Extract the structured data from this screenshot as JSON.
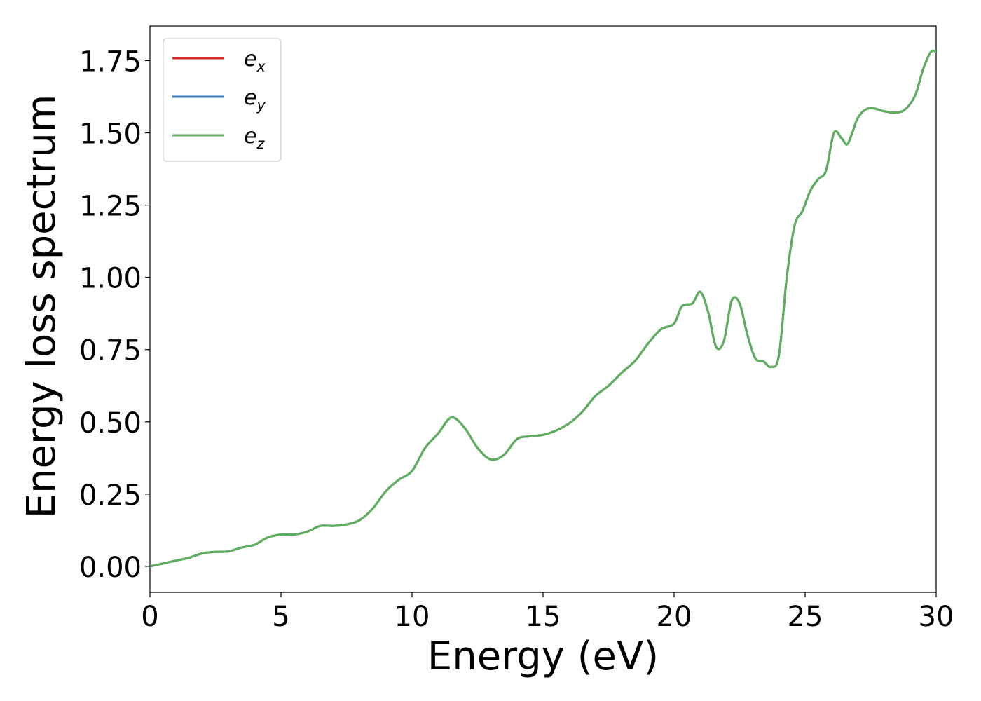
{
  "chart_data": {
    "type": "line",
    "title": "",
    "xlabel": "Energy (eV)",
    "ylabel": "Energy loss spectrum",
    "xlim": [
      0,
      30
    ],
    "ylim": [
      -0.09,
      1.87
    ],
    "xticks": [
      0,
      5,
      10,
      15,
      20,
      25,
      30
    ],
    "xtick_labels": [
      "0",
      "5",
      "10",
      "15",
      "20",
      "25",
      "30"
    ],
    "yticks": [
      0.0,
      0.25,
      0.5,
      0.75,
      1.0,
      1.25,
      1.5,
      1.75
    ],
    "ytick_labels": [
      "0.00",
      "0.25",
      "0.50",
      "0.75",
      "1.00",
      "1.25",
      "1.50",
      "1.75"
    ],
    "grid": false,
    "legend_position": "top-left",
    "x": [
      0,
      0.5,
      1.0,
      1.5,
      2.0,
      2.5,
      3.0,
      3.5,
      4.0,
      4.5,
      5.0,
      5.5,
      6.0,
      6.5,
      7.0,
      7.5,
      8.0,
      8.5,
      9.0,
      9.5,
      10.0,
      10.5,
      11.0,
      11.5,
      12.0,
      12.5,
      13.0,
      13.5,
      14.0,
      14.5,
      15.0,
      15.5,
      16.0,
      16.5,
      17.0,
      17.5,
      18.0,
      18.5,
      19.0,
      19.5,
      20.0,
      20.3,
      20.7,
      21.0,
      21.3,
      21.6,
      21.9,
      22.2,
      22.5,
      22.8,
      23.1,
      23.4,
      23.7,
      24.0,
      24.3,
      24.6,
      24.9,
      25.2,
      25.5,
      25.8,
      26.1,
      26.4,
      26.6,
      26.8,
      27.0,
      27.3,
      27.6,
      28.0,
      28.4,
      28.8,
      29.2,
      29.5,
      29.8,
      30.0
    ],
    "series": [
      {
        "name": "e_x",
        "label_base": "e",
        "label_sub": "x",
        "color": "#d62728",
        "values": [
          0.0,
          0.01,
          0.02,
          0.03,
          0.045,
          0.05,
          0.052,
          0.065,
          0.075,
          0.1,
          0.11,
          0.11,
          0.12,
          0.14,
          0.14,
          0.145,
          0.16,
          0.2,
          0.26,
          0.3,
          0.33,
          0.41,
          0.46,
          0.515,
          0.48,
          0.41,
          0.37,
          0.385,
          0.44,
          0.45,
          0.455,
          0.47,
          0.495,
          0.535,
          0.59,
          0.625,
          0.67,
          0.71,
          0.77,
          0.82,
          0.84,
          0.9,
          0.91,
          0.95,
          0.88,
          0.76,
          0.78,
          0.92,
          0.91,
          0.8,
          0.72,
          0.71,
          0.69,
          0.73,
          1.0,
          1.18,
          1.23,
          1.3,
          1.34,
          1.37,
          1.5,
          1.48,
          1.46,
          1.5,
          1.55,
          1.58,
          1.585,
          1.575,
          1.57,
          1.58,
          1.63,
          1.72,
          1.78,
          1.78
        ]
      },
      {
        "name": "e_y",
        "label_base": "e",
        "label_sub": "y",
        "color": "#3d7ab8",
        "values": [
          0.0,
          0.01,
          0.02,
          0.03,
          0.045,
          0.05,
          0.052,
          0.065,
          0.075,
          0.1,
          0.11,
          0.11,
          0.12,
          0.14,
          0.14,
          0.145,
          0.16,
          0.2,
          0.26,
          0.3,
          0.33,
          0.41,
          0.46,
          0.515,
          0.48,
          0.41,
          0.37,
          0.385,
          0.44,
          0.45,
          0.455,
          0.47,
          0.495,
          0.535,
          0.59,
          0.625,
          0.67,
          0.71,
          0.77,
          0.82,
          0.84,
          0.9,
          0.91,
          0.95,
          0.88,
          0.76,
          0.78,
          0.92,
          0.91,
          0.8,
          0.72,
          0.71,
          0.69,
          0.73,
          1.0,
          1.18,
          1.23,
          1.3,
          1.34,
          1.37,
          1.5,
          1.48,
          1.46,
          1.5,
          1.55,
          1.58,
          1.585,
          1.575,
          1.57,
          1.58,
          1.63,
          1.72,
          1.78,
          1.78
        ]
      },
      {
        "name": "e_z",
        "label_base": "e",
        "label_sub": "z",
        "color": "#5cb05c",
        "values": [
          0.0,
          0.01,
          0.02,
          0.03,
          0.045,
          0.05,
          0.052,
          0.065,
          0.075,
          0.1,
          0.11,
          0.11,
          0.12,
          0.14,
          0.14,
          0.145,
          0.16,
          0.2,
          0.26,
          0.3,
          0.33,
          0.41,
          0.46,
          0.515,
          0.48,
          0.41,
          0.37,
          0.385,
          0.44,
          0.45,
          0.455,
          0.47,
          0.495,
          0.535,
          0.59,
          0.625,
          0.67,
          0.71,
          0.77,
          0.82,
          0.84,
          0.9,
          0.91,
          0.95,
          0.88,
          0.76,
          0.78,
          0.92,
          0.91,
          0.8,
          0.72,
          0.71,
          0.69,
          0.73,
          1.0,
          1.18,
          1.23,
          1.3,
          1.34,
          1.37,
          1.5,
          1.48,
          1.46,
          1.5,
          1.55,
          1.58,
          1.585,
          1.575,
          1.57,
          1.58,
          1.63,
          1.72,
          1.78,
          1.78
        ]
      }
    ]
  }
}
